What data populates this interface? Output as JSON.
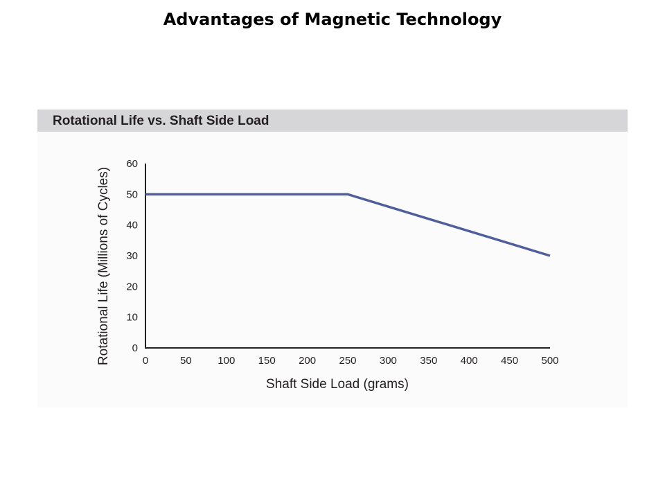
{
  "slide": {
    "title": "Advantages of Magnetic Technology"
  },
  "chart_data": {
    "type": "line",
    "title": "Rotational Life vs. Shaft Side Load",
    "xlabel": "Shaft Side Load (grams)",
    "ylabel": "Rotational Life (Millions of Cycles)",
    "xlim": [
      0,
      500
    ],
    "ylim": [
      0,
      60
    ],
    "xticks": [
      0,
      50,
      100,
      150,
      200,
      250,
      300,
      350,
      400,
      450,
      500
    ],
    "yticks": [
      0,
      10,
      20,
      30,
      40,
      50,
      60
    ],
    "grid": false,
    "series": [
      {
        "color": "#515e9c",
        "x": [
          0,
          250,
          500
        ],
        "y": [
          50,
          50,
          30
        ]
      }
    ]
  }
}
